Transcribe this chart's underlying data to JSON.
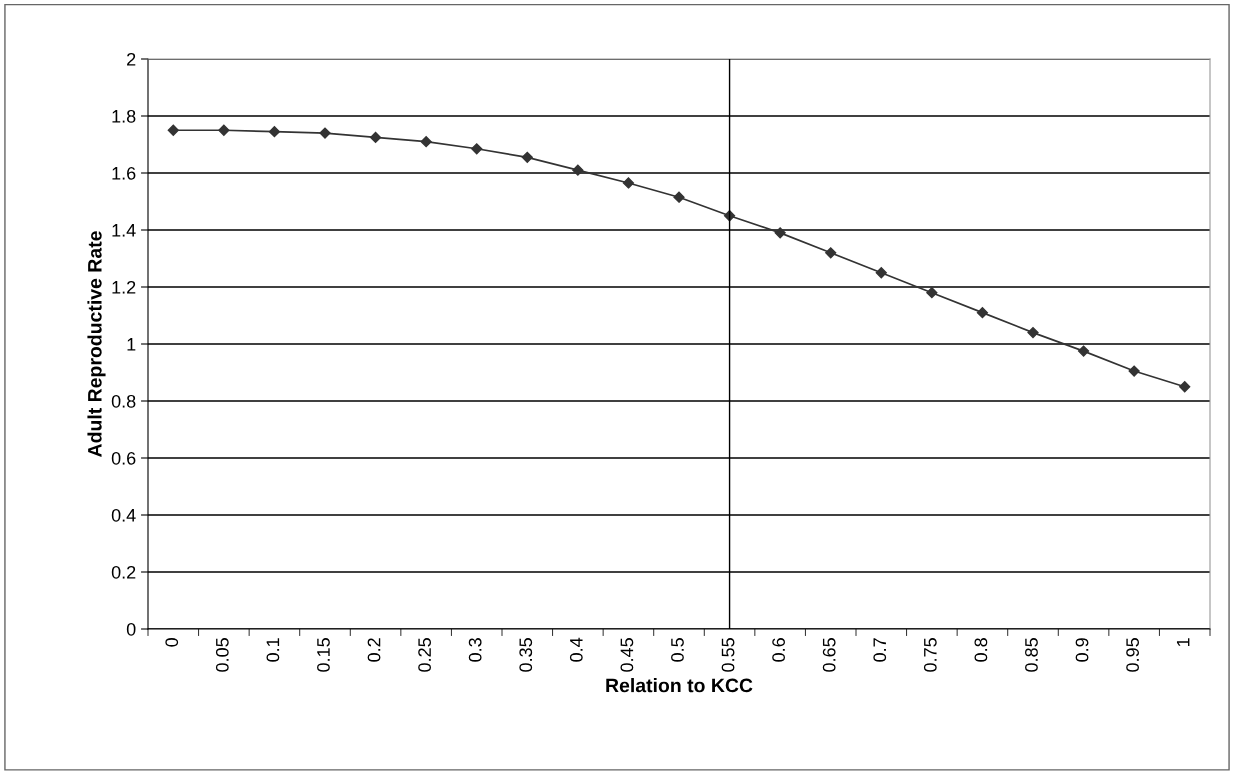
{
  "chart_data": {
    "type": "line",
    "xlabel": "Relation to KCC",
    "ylabel": "Adult Reproductive Rate",
    "categories": [
      "0",
      "0.05",
      "0.1",
      "0.15",
      "0.2",
      "0.25",
      "0.3",
      "0.35",
      "0.4",
      "0.45",
      "0.5",
      "0.55",
      "0.6",
      "0.65",
      "0.7",
      "0.75",
      "0.8",
      "0.85",
      "0.9",
      "0.95",
      "1"
    ],
    "series": [
      {
        "color": "#333333",
        "values": [
          1.75,
          1.75,
          1.745,
          1.74,
          1.725,
          1.71,
          1.685,
          1.655,
          1.61,
          1.565,
          1.515,
          1.45,
          1.39,
          1.32,
          1.25,
          1.18,
          1.11,
          1.04,
          0.975,
          0.905,
          0.85
        ]
      }
    ],
    "ylim": [
      0,
      2
    ],
    "yticks": [
      0,
      0.2,
      0.4,
      0.6,
      0.8,
      1,
      1.2,
      1.4,
      1.6,
      1.8,
      2
    ],
    "ref_lines": [
      {
        "axis": "x",
        "value": "0.55",
        "color": "#000000"
      }
    ],
    "grid": "y",
    "marker": "diamond",
    "line_style": "solid",
    "legend": false
  }
}
